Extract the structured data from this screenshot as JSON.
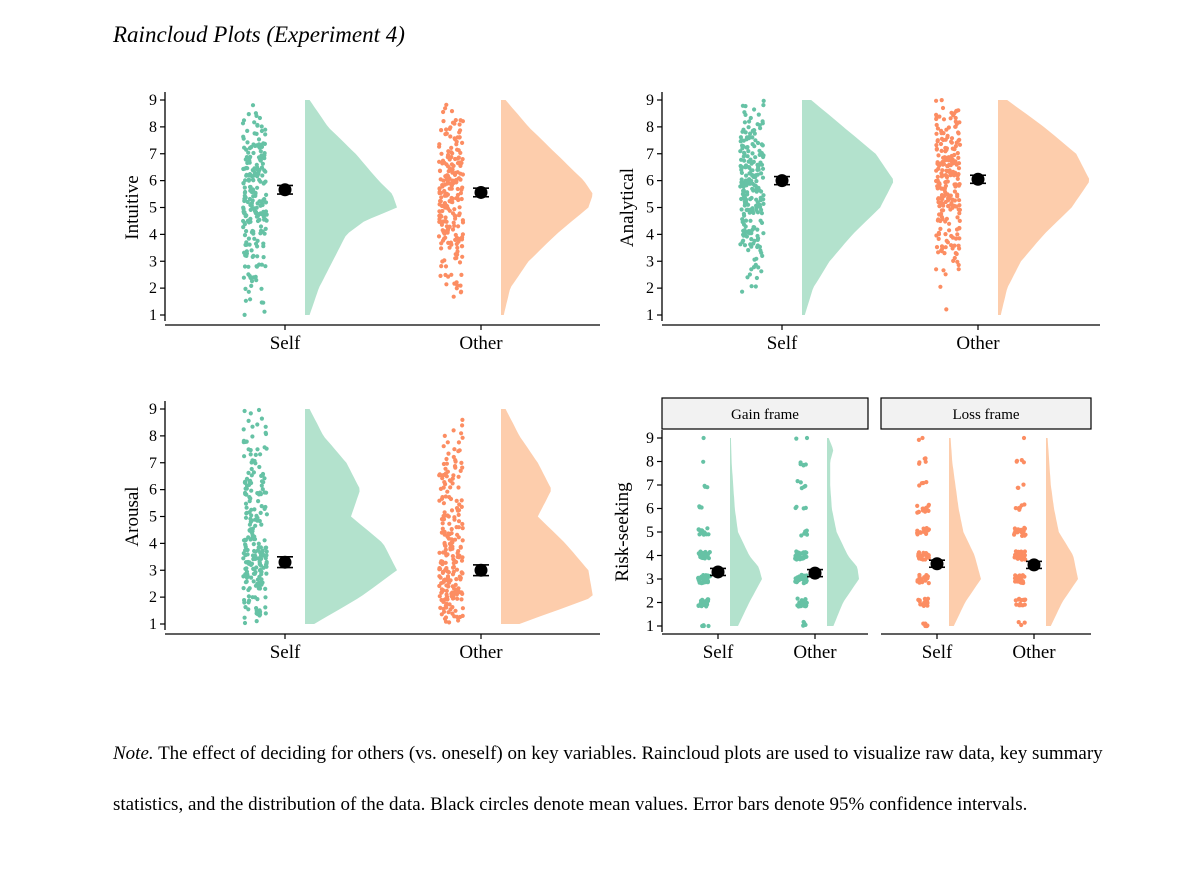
{
  "figure_title": "Raincloud Plots (Experiment 4)",
  "note": {
    "label": "Note.",
    "text": "The effect of deciding for others (vs. oneself) on key variables. Raincloud plots are used to visualize raw data, key summary statistics, and the distribution of the data. Black circles denote mean values. Error bars denote 95% confidence intervals."
  },
  "colors": {
    "self": "#66c2a5",
    "other": "#fc8d62",
    "self_fill": "#b3e2cd",
    "other_fill": "#fdcdac",
    "strip_bg": "#f2f2f2"
  },
  "chart_data": [
    {
      "type": "raincloud",
      "ylabel": "Intuitive",
      "categories": [
        "Self",
        "Other"
      ],
      "ylim": [
        1,
        9
      ],
      "yticks": [
        1,
        2,
        3,
        4,
        5,
        6,
        7,
        8,
        9
      ],
      "means": [
        5.66,
        5.56
      ],
      "ci": [
        [
          5.5,
          5.82
        ],
        [
          5.4,
          5.72
        ]
      ],
      "density": [
        {
          "y": [
            1,
            2,
            3,
            4,
            4.5,
            5,
            5.5,
            6,
            7,
            8,
            9
          ],
          "d": [
            0.05,
            0.15,
            0.3,
            0.45,
            0.65,
            1.0,
            0.95,
            0.8,
            0.55,
            0.25,
            0.05
          ]
        },
        {
          "y": [
            1,
            2,
            3,
            4,
            5,
            5.5,
            6,
            7,
            8,
            9
          ],
          "d": [
            0.03,
            0.1,
            0.3,
            0.6,
            0.95,
            1.0,
            0.9,
            0.6,
            0.3,
            0.05
          ]
        }
      ]
    },
    {
      "type": "raincloud",
      "ylabel": "Analytical",
      "categories": [
        "Self",
        "Other"
      ],
      "ylim": [
        1,
        9
      ],
      "yticks": [
        1,
        2,
        3,
        4,
        5,
        6,
        7,
        8,
        9
      ],
      "means": [
        6.0,
        6.05
      ],
      "ci": [
        [
          5.85,
          6.15
        ],
        [
          5.9,
          6.2
        ]
      ],
      "density": [
        {
          "y": [
            1,
            2,
            3,
            4,
            5,
            6,
            7,
            8,
            9
          ],
          "d": [
            0.03,
            0.12,
            0.3,
            0.55,
            0.85,
            1.0,
            0.8,
            0.45,
            0.1
          ]
        },
        {
          "y": [
            1,
            2,
            3,
            4,
            5,
            6,
            7,
            8,
            9
          ],
          "d": [
            0.03,
            0.1,
            0.25,
            0.5,
            0.8,
            1.0,
            0.85,
            0.5,
            0.1
          ]
        }
      ]
    },
    {
      "type": "raincloud",
      "ylabel": "Arousal",
      "categories": [
        "Self",
        "Other"
      ],
      "ylim": [
        1,
        9
      ],
      "yticks": [
        1,
        2,
        3,
        4,
        5,
        6,
        7,
        8,
        9
      ],
      "means": [
        3.3,
        3.0
      ],
      "ci": [
        [
          3.1,
          3.5
        ],
        [
          2.8,
          3.2
        ]
      ],
      "density": [
        {
          "y": [
            1,
            2,
            3,
            4,
            5,
            6,
            7,
            8,
            9
          ],
          "d": [
            0.1,
            0.6,
            1.0,
            0.85,
            0.5,
            0.6,
            0.45,
            0.2,
            0.05
          ]
        },
        {
          "y": [
            1,
            2,
            3,
            4,
            5,
            6,
            7,
            8,
            9
          ],
          "d": [
            0.2,
            1.0,
            0.95,
            0.7,
            0.4,
            0.55,
            0.4,
            0.2,
            0.05
          ]
        }
      ]
    },
    {
      "type": "raincloud",
      "ylabel": "Risk-seeking",
      "facets": [
        "Gain frame",
        "Loss frame"
      ],
      "categories": [
        "Self",
        "Other"
      ],
      "ylim": [
        1,
        9
      ],
      "yticks": [
        1,
        2,
        3,
        4,
        5,
        6,
        7,
        8,
        9
      ],
      "means": [
        [
          3.3,
          3.25
        ],
        [
          3.65,
          3.6
        ]
      ],
      "ci": [
        [
          [
            3.15,
            3.45
          ],
          [
            3.1,
            3.4
          ]
        ],
        [
          [
            3.5,
            3.8
          ],
          [
            3.45,
            3.75
          ]
        ]
      ],
      "density": [
        [
          {
            "y": [
              1,
              2,
              3,
              3.5,
              4,
              5,
              6,
              7,
              8,
              9
            ],
            "d": [
              0.25,
              0.6,
              1.0,
              0.9,
              0.6,
              0.25,
              0.15,
              0.1,
              0.05,
              0.03
            ]
          },
          {
            "y": [
              1,
              2,
              3,
              3.5,
              4,
              5,
              6,
              7,
              8,
              8.5,
              9
            ],
            "d": [
              0.2,
              0.5,
              1.0,
              0.95,
              0.65,
              0.3,
              0.15,
              0.1,
              0.1,
              0.2,
              0.05
            ]
          }
        ],
        [
          {
            "y": [
              1,
              2,
              3,
              4,
              5,
              6,
              7,
              8,
              9
            ],
            "d": [
              0.15,
              0.5,
              1.0,
              0.8,
              0.45,
              0.3,
              0.2,
              0.1,
              0.05
            ]
          },
          {
            "y": [
              1,
              2,
              3,
              4,
              5,
              6,
              7,
              8,
              9
            ],
            "d": [
              0.15,
              0.5,
              1.0,
              0.85,
              0.4,
              0.25,
              0.15,
              0.1,
              0.05
            ]
          }
        ]
      ]
    }
  ]
}
